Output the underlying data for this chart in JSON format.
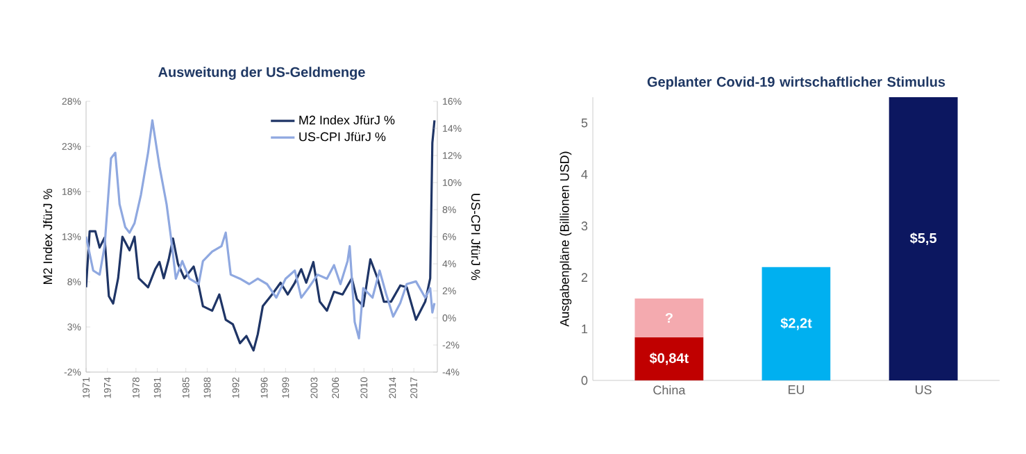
{
  "chart_data": [
    {
      "type": "line",
      "title": "Ausweitung der US-Geldmenge",
      "ylabel": "M2 Index JfürJ %",
      "y2label": "US-CPI JfürJ %",
      "legend": "top right",
      "marker": "none",
      "line_style": "solid",
      "xlim": [
        1971,
        2020.3
      ],
      "xticks": [
        1971,
        1974,
        1978,
        1981,
        1985,
        1988,
        1992,
        1996,
        1999,
        2003,
        2006,
        2010,
        2014,
        2017
      ],
      "ylim": [
        -2,
        28
      ],
      "yticks": [
        {
          "value": -2,
          "label": "-2%"
        },
        {
          "value": 3,
          "label": "3%"
        },
        {
          "value": 8,
          "label": "8%"
        },
        {
          "value": 13,
          "label": "13%"
        },
        {
          "value": 18,
          "label": "18%"
        },
        {
          "value": 23,
          "label": "23%"
        },
        {
          "value": 28,
          "label": "28%"
        }
      ],
      "y2lim": [
        -4,
        16
      ],
      "y2ticks": [
        {
          "value": -4,
          "label": "-4%"
        },
        {
          "value": -2,
          "label": "-2%"
        },
        {
          "value": 0,
          "label": "0%"
        },
        {
          "value": 2,
          "label": "2%"
        },
        {
          "value": 4,
          "label": "4%"
        },
        {
          "value": 6,
          "label": "6%"
        },
        {
          "value": 8,
          "label": "8%"
        },
        {
          "value": 10,
          "label": "10%"
        },
        {
          "value": 12,
          "label": "12%"
        },
        {
          "value": 14,
          "label": "14%"
        },
        {
          "value": 16,
          "label": "16%"
        }
      ],
      "series": [
        {
          "name": "M2 Index JfürJ %",
          "color": "#1f3566",
          "x": [
            1971.0,
            1971.5,
            1972.3,
            1972.9,
            1973.6,
            1974.2,
            1974.8,
            1975.5,
            1976.1,
            1977.1,
            1977.8,
            1978.4,
            1979.7,
            1980.7,
            1981.3,
            1981.9,
            1982.6,
            1983.2,
            1983.9,
            1984.8,
            1986.1,
            1986.8,
            1987.4,
            1988.7,
            1989.7,
            1990.6,
            1991.6,
            1992.6,
            1993.5,
            1994.5,
            1995.1,
            1995.8,
            1997.1,
            1998.3,
            1999.3,
            2000.3,
            2001.2,
            2001.9,
            2002.9,
            2003.8,
            2004.8,
            2005.8,
            2007.0,
            2008.3,
            2009.0,
            2009.9,
            2010.9,
            2011.9,
            2012.8,
            2013.8,
            2015.1,
            2016.0,
            2017.3,
            2018.6,
            2019.3,
            2019.6,
            2019.9
          ],
          "values": [
            7.4,
            13.6,
            13.6,
            11.8,
            12.9,
            6.4,
            5.6,
            8.4,
            13.0,
            11.5,
            13.0,
            8.4,
            7.4,
            9.4,
            10.2,
            8.4,
            10.5,
            12.8,
            10.0,
            8.4,
            9.7,
            7.6,
            5.3,
            4.8,
            6.6,
            3.8,
            3.3,
            1.2,
            2.0,
            0.4,
            2.2,
            5.3,
            6.6,
            7.9,
            6.6,
            7.9,
            9.4,
            7.9,
            10.2,
            5.8,
            4.8,
            6.9,
            6.6,
            8.4,
            6.1,
            5.3,
            10.5,
            8.4,
            5.8,
            5.8,
            7.6,
            7.4,
            3.8,
            5.8,
            8.4,
            23.4,
            25.9
          ]
        },
        {
          "name": "US-CPI JfürJ %",
          "color": "#8fa8e0",
          "axis": "y2",
          "x": [
            1971.0,
            1972.0,
            1972.9,
            1973.6,
            1974.5,
            1975.1,
            1975.7,
            1976.5,
            1977.1,
            1977.8,
            1978.7,
            1979.7,
            1980.3,
            1981.3,
            1982.3,
            1982.9,
            1983.6,
            1984.5,
            1985.5,
            1986.8,
            1987.4,
            1988.7,
            1990.0,
            1990.6,
            1991.3,
            1992.6,
            1993.9,
            1995.1,
            1996.4,
            1997.7,
            1999.0,
            2000.3,
            2001.2,
            2002.2,
            2003.5,
            2004.8,
            2005.8,
            2006.7,
            2007.7,
            2008.0,
            2008.7,
            2009.3,
            2009.9,
            2011.2,
            2012.2,
            2013.1,
            2014.1,
            2015.1,
            2016.0,
            2017.3,
            2018.6,
            2019.3,
            2019.6,
            2019.9
          ],
          "values": [
            6.0,
            3.5,
            3.2,
            5.3,
            11.8,
            12.2,
            8.4,
            6.7,
            6.3,
            7.0,
            9.1,
            12.2,
            14.6,
            11.2,
            8.4,
            6.0,
            2.9,
            4.2,
            2.9,
            2.5,
            4.2,
            4.9,
            5.3,
            6.3,
            3.2,
            2.9,
            2.5,
            2.9,
            2.5,
            1.5,
            2.9,
            3.5,
            1.5,
            2.2,
            3.2,
            2.9,
            3.9,
            2.5,
            4.2,
            5.3,
            -0.3,
            -1.5,
            2.2,
            1.5,
            3.5,
            1.8,
            0.1,
            1.1,
            2.5,
            2.7,
            1.5,
            2.2,
            0.4,
            1.1
          ]
        }
      ]
    },
    {
      "type": "bar",
      "title": "Geplanter Covid-19 wirtschaftlicher Stimulus",
      "ylabel": "Ausgabenpläne (Billionen USD)",
      "stacked": true,
      "categories": [
        "China",
        "EU",
        "US"
      ],
      "ylim": [
        0,
        5.5
      ],
      "yticks": [
        0,
        1,
        2,
        3,
        4,
        5
      ],
      "series": [
        {
          "colors": [
            "#c00000",
            "#00b0f0",
            "#0c1760"
          ],
          "values": [
            0.84,
            2.2,
            5.5
          ],
          "value_labels": [
            "$0,84t",
            "$2,2t",
            "$5,5"
          ]
        },
        {
          "colors": [
            "#f4aaaf",
            null,
            null
          ],
          "values": [
            0.75,
            null,
            null
          ],
          "value_labels": [
            "?",
            null,
            null
          ]
        }
      ]
    }
  ]
}
